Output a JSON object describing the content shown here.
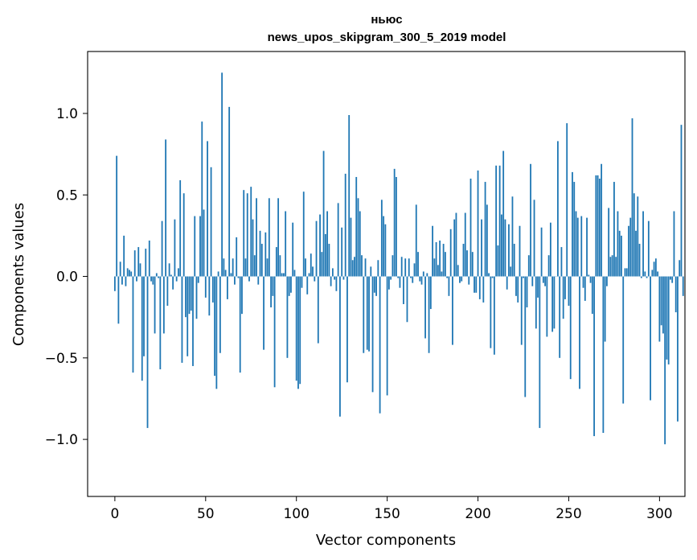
{
  "chart_data": {
    "type": "bar",
    "title_line1": "ньюс",
    "title_line2": "news_upos_skipgram_300_5_2019 model",
    "xlabel": "Vector components",
    "ylabel": "Components values",
    "xlim": [
      -15,
      314
    ],
    "ylim": [
      -1.35,
      1.38
    ],
    "x_ticks": [
      {
        "value": 0,
        "label": "0"
      },
      {
        "value": 50,
        "label": "50"
      },
      {
        "value": 100,
        "label": "100"
      },
      {
        "value": 150,
        "label": "150"
      },
      {
        "value": 200,
        "label": "200"
      },
      {
        "value": 250,
        "label": "250"
      },
      {
        "value": 300,
        "label": "300"
      }
    ],
    "y_ticks": [
      {
        "value": 1.0,
        "label": "1.0"
      },
      {
        "value": 0.5,
        "label": "0.5"
      },
      {
        "value": 0.0,
        "label": "0.0"
      },
      {
        "value": -0.5,
        "label": "−0.5"
      },
      {
        "value": -1.0,
        "label": "−1.0"
      }
    ],
    "bar_color": "#1f77b4",
    "values": [
      -0.09,
      0.74,
      -0.29,
      0.09,
      -0.05,
      0.25,
      -0.06,
      0.05,
      0.04,
      0.03,
      -0.59,
      0.16,
      -0.03,
      0.18,
      0.08,
      -0.64,
      -0.49,
      0.17,
      -0.93,
      0.22,
      -0.03,
      -0.05,
      -0.35,
      0.02,
      -0.01,
      -0.57,
      0.34,
      -0.35,
      0.84,
      -0.18,
      0.08,
      0.01,
      -0.08,
      0.35,
      -0.03,
      0.05,
      0.59,
      -0.53,
      0.51,
      -0.25,
      -0.49,
      -0.23,
      -0.21,
      -0.55,
      0.37,
      -0.26,
      -0.04,
      0.37,
      0.95,
      0.41,
      -0.13,
      0.83,
      -0.24,
      0.67,
      -0.16,
      -0.61,
      -0.69,
      0.03,
      -0.47,
      1.25,
      0.11,
      0.04,
      -0.14,
      1.04,
      0.02,
      0.11,
      -0.05,
      0.24,
      -0.01,
      -0.59,
      -0.23,
      0.53,
      0.11,
      0.51,
      -0.03,
      0.55,
      0.35,
      0.13,
      0.48,
      -0.05,
      0.28,
      0.2,
      -0.45,
      0.27,
      0.11,
      0.48,
      -0.19,
      -0.12,
      -0.68,
      0.18,
      0.48,
      0.13,
      0.02,
      0.02,
      0.4,
      -0.5,
      -0.12,
      -0.1,
      0.33,
      0.04,
      -0.64,
      -0.69,
      -0.66,
      -0.07,
      0.52,
      0.11,
      -0.11,
      0.02,
      0.14,
      0.06,
      -0.03,
      0.34,
      -0.41,
      0.38,
      0.15,
      0.77,
      0.26,
      0.4,
      0.2,
      -0.06,
      0.05,
      -0.02,
      -0.09,
      0.45,
      -0.86,
      0.3,
      -0.02,
      0.63,
      -0.65,
      0.99,
      0.36,
      0.1,
      0.12,
      0.61,
      0.48,
      0.4,
      0.13,
      -0.47,
      0.11,
      -0.45,
      -0.46,
      0.06,
      -0.71,
      -0.1,
      -0.12,
      0.1,
      -0.84,
      0.47,
      0.37,
      0.32,
      -0.73,
      -0.08,
      -0.02,
      0.13,
      0.66,
      0.61,
      -0.01,
      -0.07,
      0.12,
      -0.17,
      0.11,
      -0.28,
      0.11,
      -0.01,
      -0.04,
      0.08,
      0.44,
      0.15,
      -0.03,
      -0.05,
      0.03,
      -0.38,
      0.02,
      -0.47,
      -0.2,
      0.31,
      0.11,
      0.21,
      0.07,
      0.22,
      0.03,
      0.2,
      0.15,
      -0.01,
      -0.12,
      0.29,
      -0.42,
      0.35,
      0.39,
      0.07,
      -0.04,
      -0.03,
      0.2,
      0.39,
      0.16,
      -0.05,
      0.6,
      0.15,
      -0.1,
      -0.1,
      0.65,
      -0.14,
      0.35,
      -0.16,
      0.58,
      0.44,
      0.02,
      -0.44,
      -0.01,
      -0.48,
      0.68,
      0.19,
      0.68,
      0.38,
      0.77,
      0.35,
      -0.08,
      0.32,
      0.06,
      0.49,
      0.2,
      -0.12,
      -0.16,
      0.31,
      -0.42,
      -0.01,
      -0.74,
      -0.19,
      0.13,
      0.69,
      -0.06,
      0.47,
      -0.32,
      -0.13,
      -0.93,
      0.3,
      -0.04,
      -0.06,
      -0.37,
      0.13,
      0.33,
      -0.34,
      -0.32,
      0.0,
      0.83,
      -0.5,
      0.18,
      -0.26,
      -0.14,
      0.94,
      -0.18,
      -0.63,
      0.64,
      0.58,
      0.4,
      0.36,
      -0.69,
      0.37,
      -0.07,
      -0.15,
      0.36,
      0.01,
      -0.04,
      -0.23,
      -0.98,
      0.62,
      0.62,
      0.6,
      0.69,
      -0.96,
      -0.4,
      -0.06,
      0.42,
      0.12,
      0.13,
      0.58,
      0.12,
      0.4,
      0.28,
      0.25,
      -0.78,
      0.05,
      0.05,
      0.31,
      0.36,
      0.97,
      0.51,
      0.28,
      0.49,
      0.2,
      -0.01,
      0.4,
      0.03,
      -0.01,
      0.34,
      -0.76,
      0.04,
      0.09,
      0.11,
      0.03,
      -0.4,
      -0.3,
      -0.35,
      -1.03,
      -0.51,
      -0.54,
      -0.02,
      -0.04,
      0.4,
      -0.22,
      -0.89,
      0.1,
      0.93,
      -0.12
    ]
  }
}
